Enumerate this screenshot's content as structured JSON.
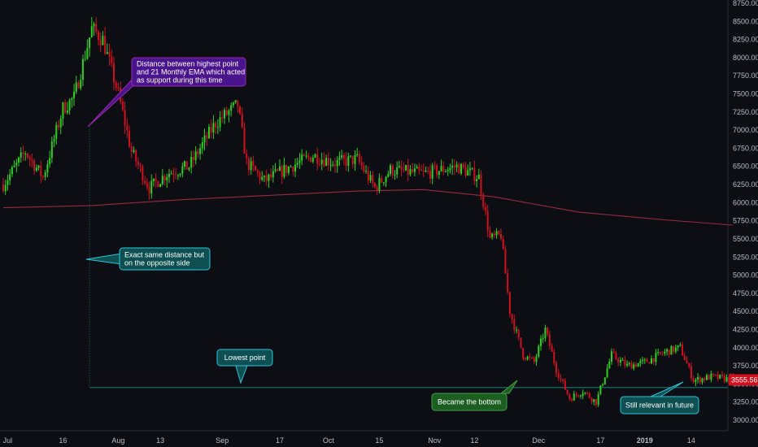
{
  "colors": {
    "background": "#0d0e14",
    "axis_text": "#b7bcc8",
    "axis_line": "#2a2e39",
    "up_candle": "#2bd11e",
    "down_candle": "#d1101f",
    "ema_line": "#9a2a3c",
    "guide_line": "#26a69a",
    "price_tag": "#d1101f"
  },
  "chart_data": {
    "type": "candlestick",
    "title": "",
    "xlabel": "",
    "ylabel": "",
    "timeframe_note": "daily candles",
    "ylim": [
      2950,
      8750
    ],
    "grid": false,
    "y_ticks": [
      "8750.00",
      "8500.00",
      "8250.00",
      "8000.00",
      "7750.00",
      "7500.00",
      "7250.00",
      "7000.00",
      "6750.00",
      "6500.00",
      "6250.00",
      "6000.00",
      "5750.00",
      "5500.00",
      "5250.00",
      "5000.00",
      "4750.00",
      "4500.00",
      "4250.00",
      "4000.00",
      "3750.00",
      "3500.00",
      "3250.00",
      "3000.00"
    ],
    "x_ticks": [
      "Jul",
      "16",
      "Aug",
      "13",
      "Sep",
      "17",
      "Oct",
      "15",
      "Nov",
      "12",
      "Dec",
      "17",
      "2019",
      "14"
    ],
    "last_price_label": "3555.56",
    "last_price": 3555.56,
    "ema_label": "21 Monthly EMA",
    "ema_points": [
      {
        "bar": 0,
        "value": 5930
      },
      {
        "bar": 40,
        "value": 5960
      },
      {
        "bar": 80,
        "value": 6040
      },
      {
        "bar": 120,
        "value": 6100
      },
      {
        "bar": 160,
        "value": 6160
      },
      {
        "bar": 190,
        "value": 6180
      },
      {
        "bar": 222,
        "value": 6080
      },
      {
        "bar": 260,
        "value": 5870
      },
      {
        "bar": 300,
        "value": 5760
      },
      {
        "bar": 330,
        "value": 5690
      }
    ],
    "close_path": [
      {
        "bar": 0,
        "close": 6250
      },
      {
        "bar": 10,
        "close": 6700
      },
      {
        "bar": 18,
        "close": 6350
      },
      {
        "bar": 27,
        "close": 7300
      },
      {
        "bar": 32,
        "close": 7450
      },
      {
        "bar": 40,
        "close": 8400
      },
      {
        "bar": 45,
        "close": 8250
      },
      {
        "bar": 52,
        "close": 7500
      },
      {
        "bar": 58,
        "close": 6700
      },
      {
        "bar": 66,
        "close": 6200
      },
      {
        "bar": 74,
        "close": 6400
      },
      {
        "bar": 84,
        "close": 6500
      },
      {
        "bar": 96,
        "close": 7100
      },
      {
        "bar": 106,
        "close": 7350
      },
      {
        "bar": 110,
        "close": 6550
      },
      {
        "bar": 118,
        "close": 6300
      },
      {
        "bar": 130,
        "close": 6500
      },
      {
        "bar": 140,
        "close": 6650
      },
      {
        "bar": 150,
        "close": 6550
      },
      {
        "bar": 160,
        "close": 6600
      },
      {
        "bar": 168,
        "close": 6200
      },
      {
        "bar": 175,
        "close": 6450
      },
      {
        "bar": 190,
        "close": 6400
      },
      {
        "bar": 205,
        "close": 6500
      },
      {
        "bar": 215,
        "close": 6350
      },
      {
        "bar": 220,
        "close": 5500
      },
      {
        "bar": 225,
        "close": 5550
      },
      {
        "bar": 229,
        "close": 4500
      },
      {
        "bar": 235,
        "close": 3900
      },
      {
        "bar": 240,
        "close": 3800
      },
      {
        "bar": 245,
        "close": 4250
      },
      {
        "bar": 250,
        "close": 3700
      },
      {
        "bar": 256,
        "close": 3300
      },
      {
        "bar": 262,
        "close": 3400
      },
      {
        "bar": 268,
        "close": 3250
      },
      {
        "bar": 275,
        "close": 3900
      },
      {
        "bar": 282,
        "close": 3750
      },
      {
        "bar": 290,
        "close": 3800
      },
      {
        "bar": 300,
        "close": 3950
      },
      {
        "bar": 306,
        "close": 4000
      },
      {
        "bar": 312,
        "close": 3550
      },
      {
        "bar": 320,
        "close": 3600
      },
      {
        "bar": 330,
        "close": 3555.56
      }
    ],
    "annotations": [
      {
        "id": "ema-distance",
        "text": [
          "Distance between highest point",
          "and 21 Monthly EMA which acted",
          "as support during this time"
        ],
        "color": "#4a148c",
        "border": "#9c27b0"
      },
      {
        "id": "same-distance",
        "text": [
          "Exact same distance but",
          "on the opposite side"
        ],
        "color": "#0e4f52",
        "border": "#26c6da"
      },
      {
        "id": "lowest-point",
        "text": [
          "Lowest point"
        ],
        "color": "#0e4f52",
        "border": "#26c6da"
      },
      {
        "id": "became-bottom",
        "text": [
          "Became the bottom"
        ],
        "color": "#1b5e20",
        "border": "#43a047"
      },
      {
        "id": "still-relevant",
        "text": [
          "Still relevant in future"
        ],
        "color": "#0e4f52",
        "border": "#26c6da"
      }
    ]
  }
}
